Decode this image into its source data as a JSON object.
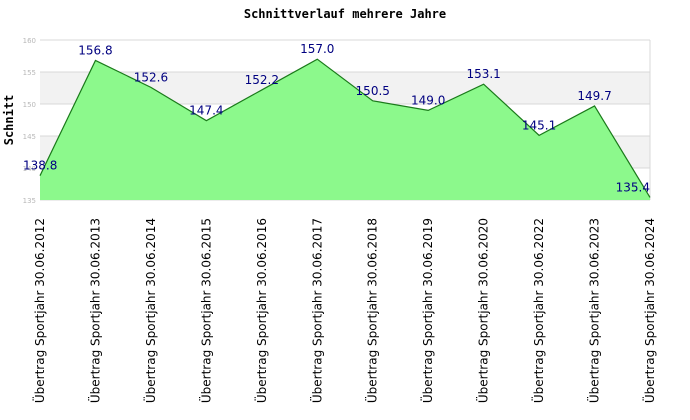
{
  "chart_data": {
    "type": "area",
    "title": "Schnittverlauf mehrere Jahre",
    "ylabel": "Schnitt",
    "xlabel": "",
    "categories": [
      "Übertrag Sportjahr 30.06.2012",
      "Übertrag Sportjahr 30.06.2013",
      "Übertrag Sportjahr 30.06.2014",
      "Übertrag Sportjahr 30.06.2015",
      "Übertrag Sportjahr 30.06.2016",
      "Übertrag Sportjahr 30.06.2017",
      "Übertrag Sportjahr 30.06.2018",
      "Übertrag Sportjahr 30.06.2019",
      "Übertrag Sportjahr 30.06.2020",
      "Übertrag Sportjahr 30.06.2022",
      "Übertrag Sportjahr 30.06.2023",
      "Übertrag Sportjahr 30.06.2024"
    ],
    "values": [
      138.8,
      156.8,
      152.6,
      147.4,
      152.2,
      157.0,
      150.5,
      149.0,
      153.1,
      145.1,
      149.7,
      135.4
    ],
    "data_labels": [
      "138.8",
      "156.8",
      "152.6",
      "147.4",
      "152.2",
      "157.0",
      "150.5",
      "149.0",
      "153.1",
      "145.1",
      "149.7",
      "135.4"
    ],
    "y_ticks": [
      "135",
      "140",
      "145",
      "150",
      "155",
      "160"
    ],
    "ylim": [
      135,
      160
    ],
    "grid": true,
    "colors": {
      "fill": "#8cf98c",
      "line": "#1a7a1a",
      "band": "#f2f2f2",
      "grid": "#d8d8d8",
      "data_label": "#000080"
    }
  }
}
